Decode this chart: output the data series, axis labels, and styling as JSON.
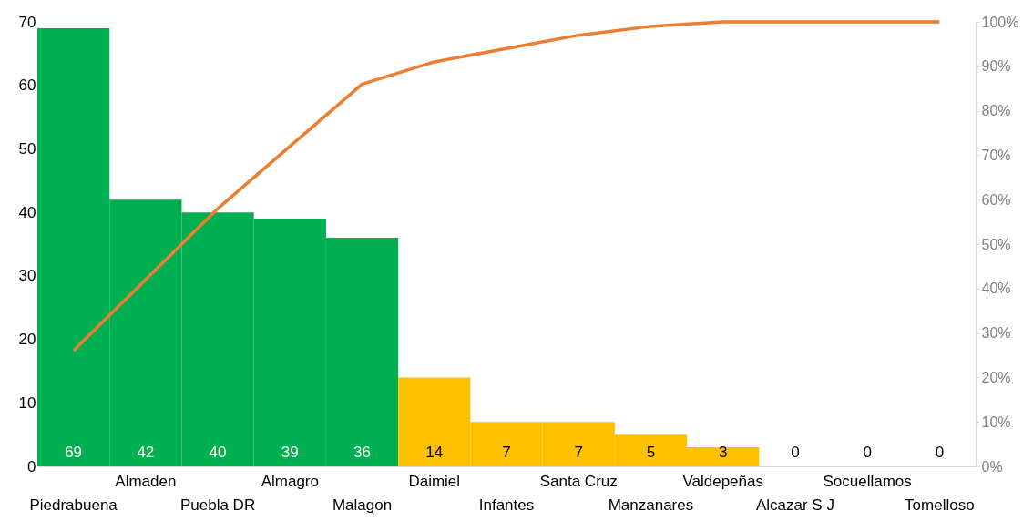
{
  "chart_data": {
    "type": "bar",
    "categories": [
      "Piedrabuena",
      "Almaden",
      "Puebla DR",
      "Almagro",
      "Malagon",
      "Daimiel",
      "Infantes",
      "Santa Cruz",
      "Manzanares",
      "Valdepeñas",
      "Alcazar S J",
      "Socuellamos",
      "Tomelloso"
    ],
    "series": [
      {
        "colors": [
          "#00b050",
          "#00b050",
          "#00b050",
          "#00b050",
          "#00b050",
          "#ffc000",
          "#ffc000",
          "#ffc000",
          "#ffc000",
          "#ffc000",
          "#ffc000",
          "#ffc000",
          "#ffc000"
        ],
        "values": [
          69,
          42,
          40,
          39,
          36,
          14,
          7,
          7,
          5,
          3,
          0,
          0,
          0
        ],
        "value_labels": [
          "69",
          "42",
          "40",
          "39",
          "36",
          "14",
          "7",
          "7",
          "5",
          "3",
          "0",
          "0",
          "0"
        ]
      },
      {
        "type": "line",
        "axis": "y2",
        "color": "#ed7d31",
        "values": [
          26,
          42,
          58,
          72,
          86,
          91,
          94,
          97,
          99,
          100,
          100,
          100,
          100
        ]
      }
    ],
    "grid": false,
    "ylim": [
      0,
      70
    ],
    "yticks": [
      0,
      10,
      20,
      30,
      40,
      50,
      60,
      70
    ],
    "y2lim": [
      0,
      100
    ],
    "y2ticks": [
      {
        "value": 0,
        "label": "0%"
      },
      {
        "value": 10,
        "label": "10%"
      },
      {
        "value": 20,
        "label": "20%"
      },
      {
        "value": 30,
        "label": "30%"
      },
      {
        "value": 40,
        "label": "40%"
      },
      {
        "value": 50,
        "label": "50%"
      },
      {
        "value": 60,
        "label": "60%"
      },
      {
        "value": 70,
        "label": "70%"
      },
      {
        "value": 80,
        "label": "80%"
      },
      {
        "value": 90,
        "label": "90%"
      },
      {
        "value": 100,
        "label": "100%"
      }
    ]
  }
}
